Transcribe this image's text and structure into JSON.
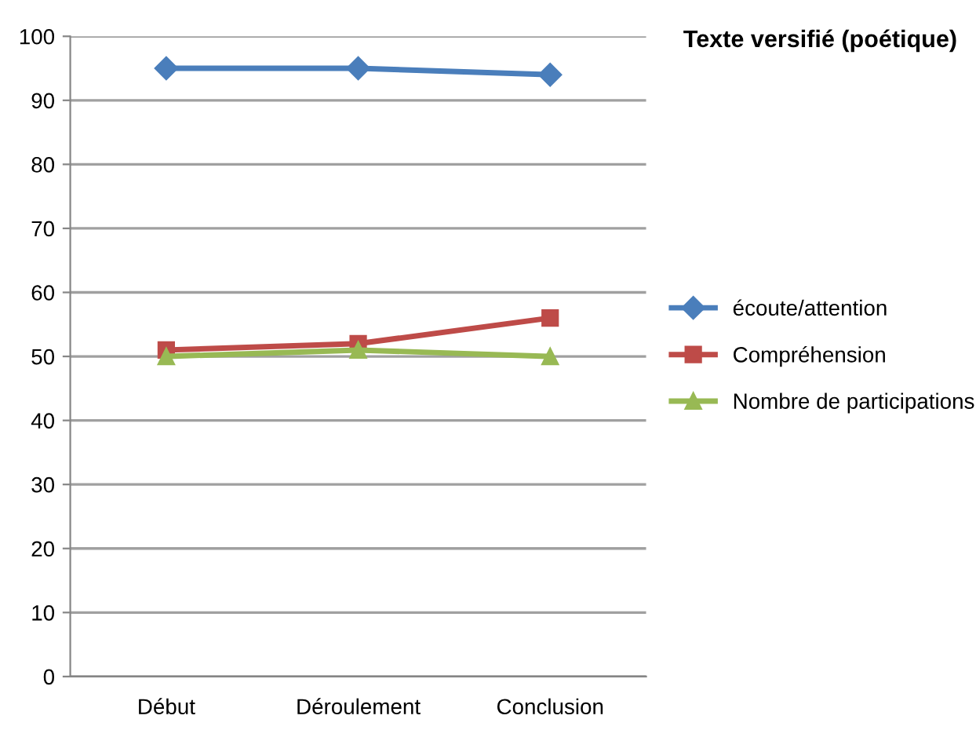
{
  "chart_data": {
    "type": "line",
    "title": "Texte versifié (poétique)",
    "categories": [
      "Début",
      "Déroulement",
      "Conclusion"
    ],
    "series": [
      {
        "name": "écoute/attention",
        "color": "#4a7ebb",
        "marker": "diamond",
        "values": [
          95,
          95,
          94
        ]
      },
      {
        "name": "Compréhension",
        "color": "#be4b48",
        "marker": "square",
        "values": [
          51,
          52,
          56
        ]
      },
      {
        "name": "Nombre de participations",
        "color": "#98b954",
        "marker": "triangle",
        "values": [
          50,
          51,
          50
        ]
      }
    ],
    "ylim": [
      0,
      100
    ],
    "yticks": [
      0,
      10,
      20,
      30,
      40,
      50,
      60,
      70,
      80,
      90,
      100
    ],
    "grid": "y",
    "legend": "right",
    "line_style": "solid"
  }
}
